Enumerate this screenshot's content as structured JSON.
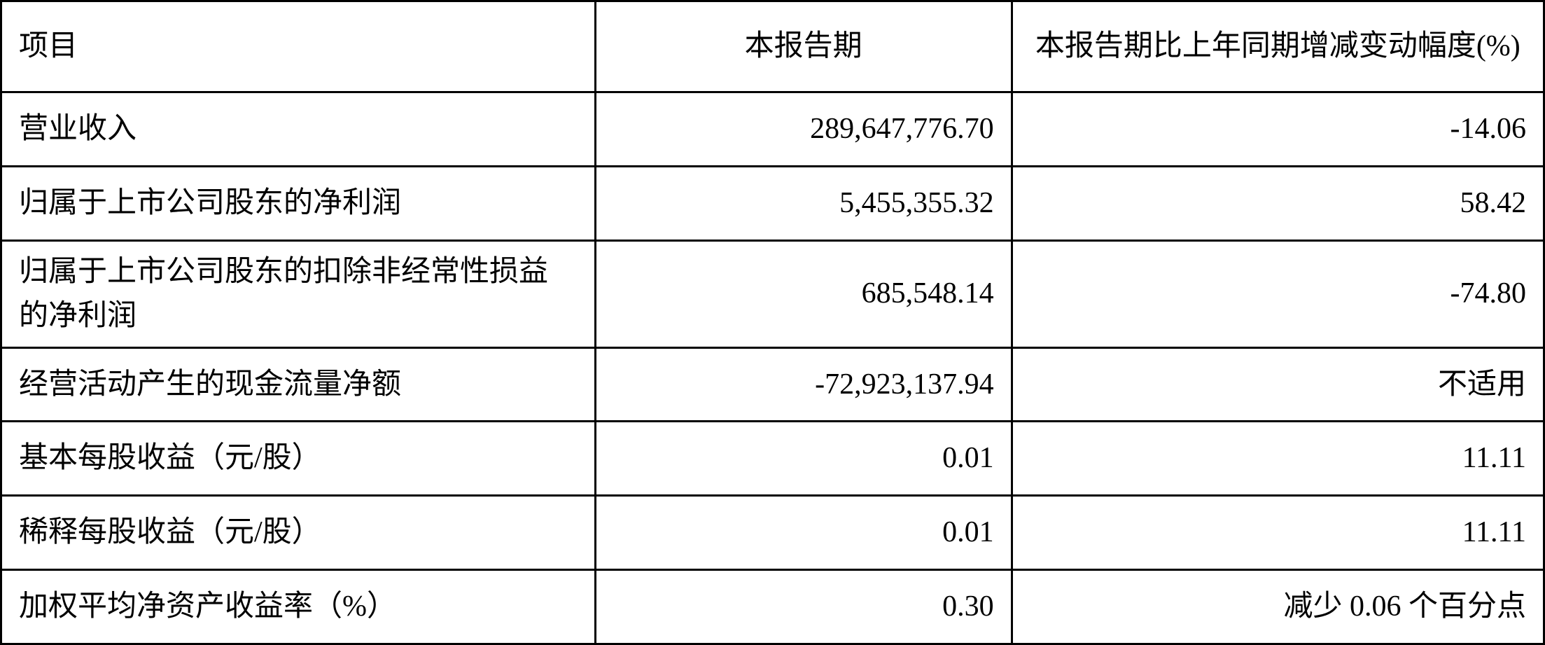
{
  "table": {
    "type": "table",
    "background_color": "#ffffff",
    "border_color": "#000000",
    "text_color": "#000000",
    "font_family": "SimSun",
    "font_size_pt": 32,
    "columns": [
      {
        "key": "item",
        "label": "项目",
        "align": "left",
        "width_pct": 38.5
      },
      {
        "key": "period",
        "label": "本报告期",
        "align": "center",
        "width_pct": 27
      },
      {
        "key": "change",
        "label": "本报告期比上年同期增减变动幅度(%)",
        "align": "center",
        "width_pct": 34.5
      }
    ],
    "rows": [
      {
        "item": "营业收入",
        "period": "289,647,776.70",
        "change": "-14.06"
      },
      {
        "item": "归属于上市公司股东的净利润",
        "period": "5,455,355.32",
        "change": "58.42"
      },
      {
        "item": "归属于上市公司股东的扣除非经常性损益的净利润",
        "period": "685,548.14",
        "change": "-74.80"
      },
      {
        "item": "经营活动产生的现金流量净额",
        "period": "-72,923,137.94",
        "change": "不适用"
      },
      {
        "item": "基本每股收益（元/股）",
        "period": "0.01",
        "change": "11.11"
      },
      {
        "item": "稀释每股收益（元/股）",
        "period": "0.01",
        "change": "11.11"
      },
      {
        "item": "加权平均净资产收益率（%）",
        "period": "0.30",
        "change": "减少 0.06 个百分点"
      }
    ]
  }
}
